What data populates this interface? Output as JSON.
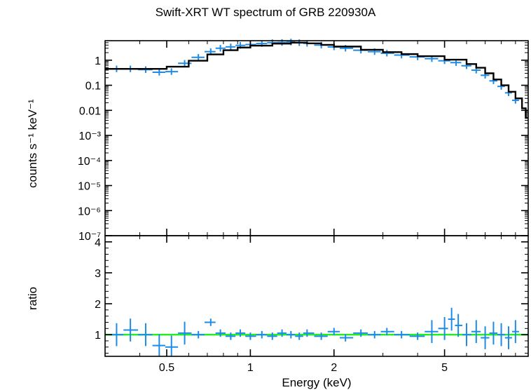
{
  "chart_data": {
    "type": "scatter",
    "title": "Swift-XRT WT spectrum of GRB 220930A",
    "xlabel": "Energy (keV)",
    "x_scale": "log",
    "x_range": [
      0.3,
      10
    ],
    "x_ticks": [
      {
        "v": 0.5,
        "label": "0.5"
      },
      {
        "v": 1,
        "label": "1"
      },
      {
        "v": 2,
        "label": "2"
      },
      {
        "v": 5,
        "label": "5"
      }
    ],
    "colors": {
      "data": "#1e8be6",
      "model": "#000000",
      "unity": "#22ee22"
    },
    "top_panel": {
      "ylabel": "counts s⁻¹ keV⁻¹",
      "y_scale": "log",
      "y_range": [
        1e-07,
        6
      ],
      "y_ticks": [
        {
          "v": 1,
          "label": "1"
        },
        {
          "v": 0.1,
          "label": "0.1"
        },
        {
          "v": 0.01,
          "label": "0.01"
        },
        {
          "v": 0.001,
          "label": "10⁻³"
        },
        {
          "v": 0.0001,
          "label": "10⁻⁴"
        },
        {
          "v": 1e-05,
          "label": "10⁻⁵"
        },
        {
          "v": 1e-06,
          "label": "10⁻⁶"
        },
        {
          "v": 1e-07,
          "label": "10⁻⁷"
        }
      ],
      "data_points": [
        [
          0.33,
          0.45
        ],
        [
          0.37,
          0.45
        ],
        [
          0.42,
          0.42
        ],
        [
          0.47,
          0.33
        ],
        [
          0.52,
          0.35
        ],
        [
          0.58,
          0.75
        ],
        [
          0.65,
          1.3
        ],
        [
          0.72,
          2.2
        ],
        [
          0.78,
          3.0
        ],
        [
          0.85,
          3.4
        ],
        [
          0.92,
          3.9
        ],
        [
          1.0,
          4.2
        ],
        [
          1.1,
          4.6
        ],
        [
          1.2,
          5.0
        ],
        [
          1.3,
          5.1
        ],
        [
          1.4,
          5.3
        ],
        [
          1.5,
          5.0
        ],
        [
          1.6,
          4.7
        ],
        [
          1.8,
          4.0
        ],
        [
          2.0,
          3.4
        ],
        [
          2.2,
          3.0
        ],
        [
          2.5,
          2.5
        ],
        [
          2.8,
          2.2
        ],
        [
          3.1,
          1.9
        ],
        [
          3.5,
          1.6
        ],
        [
          4.0,
          1.35
        ],
        [
          4.5,
          1.15
        ],
        [
          5.0,
          0.95
        ],
        [
          5.5,
          0.8
        ],
        [
          6.0,
          0.6
        ],
        [
          6.5,
          0.4
        ],
        [
          7.0,
          0.25
        ],
        [
          7.5,
          0.15
        ],
        [
          8.0,
          0.09
        ],
        [
          8.5,
          0.05
        ],
        [
          9.0,
          0.025
        ]
      ],
      "model": [
        [
          0.3,
          0.45
        ],
        [
          0.45,
          0.45
        ],
        [
          0.5,
          0.55
        ],
        [
          0.6,
          0.95
        ],
        [
          0.7,
          1.7
        ],
        [
          0.8,
          2.5
        ],
        [
          0.9,
          3.2
        ],
        [
          1.0,
          3.8
        ],
        [
          1.2,
          4.6
        ],
        [
          1.4,
          5.0
        ],
        [
          1.6,
          4.7
        ],
        [
          1.8,
          4.1
        ],
        [
          2.0,
          3.5
        ],
        [
          2.5,
          2.6
        ],
        [
          3.0,
          2.1
        ],
        [
          3.5,
          1.75
        ],
        [
          4.0,
          1.45
        ],
        [
          5.0,
          1.05
        ],
        [
          6.0,
          0.7
        ],
        [
          6.5,
          0.5
        ],
        [
          7.0,
          0.3
        ],
        [
          7.5,
          0.17
        ],
        [
          8.0,
          0.1
        ],
        [
          8.5,
          0.055
        ],
        [
          9.0,
          0.03
        ],
        [
          9.5,
          0.012
        ],
        [
          9.8,
          0.005
        ]
      ]
    },
    "bottom_panel": {
      "ylabel": "ratio",
      "y_scale": "linear",
      "y_range": [
        0.3,
        4.2
      ],
      "y_ticks": [
        {
          "v": 1,
          "label": "1"
        },
        {
          "v": 2,
          "label": "2"
        },
        {
          "v": 3,
          "label": "3"
        },
        {
          "v": 4,
          "label": "4"
        }
      ],
      "unity_line": 1,
      "data_points": [
        [
          0.33,
          1.0
        ],
        [
          0.37,
          1.15
        ],
        [
          0.42,
          1.0
        ],
        [
          0.47,
          0.65
        ],
        [
          0.52,
          0.6
        ],
        [
          0.58,
          1.05
        ],
        [
          0.65,
          1.0
        ],
        [
          0.72,
          1.4
        ],
        [
          0.78,
          1.05
        ],
        [
          0.85,
          0.95
        ],
        [
          0.92,
          1.05
        ],
        [
          1.0,
          0.95
        ],
        [
          1.1,
          1.0
        ],
        [
          1.2,
          0.95
        ],
        [
          1.3,
          1.05
        ],
        [
          1.4,
          1.0
        ],
        [
          1.5,
          0.95
        ],
        [
          1.6,
          1.05
        ],
        [
          1.8,
          0.95
        ],
        [
          2.0,
          1.1
        ],
        [
          2.2,
          0.9
        ],
        [
          2.5,
          1.05
        ],
        [
          2.8,
          1.0
        ],
        [
          3.1,
          1.1
        ],
        [
          3.5,
          1.0
        ],
        [
          4.0,
          0.95
        ],
        [
          4.5,
          1.1
        ],
        [
          5.0,
          1.2
        ],
        [
          5.3,
          1.5
        ],
        [
          5.6,
          1.3
        ],
        [
          6.0,
          1.0
        ],
        [
          6.5,
          1.1
        ],
        [
          7.0,
          0.9
        ],
        [
          7.5,
          1.05
        ],
        [
          8.0,
          1.0
        ],
        [
          8.5,
          0.9
        ],
        [
          9.0,
          1.1
        ]
      ]
    }
  }
}
